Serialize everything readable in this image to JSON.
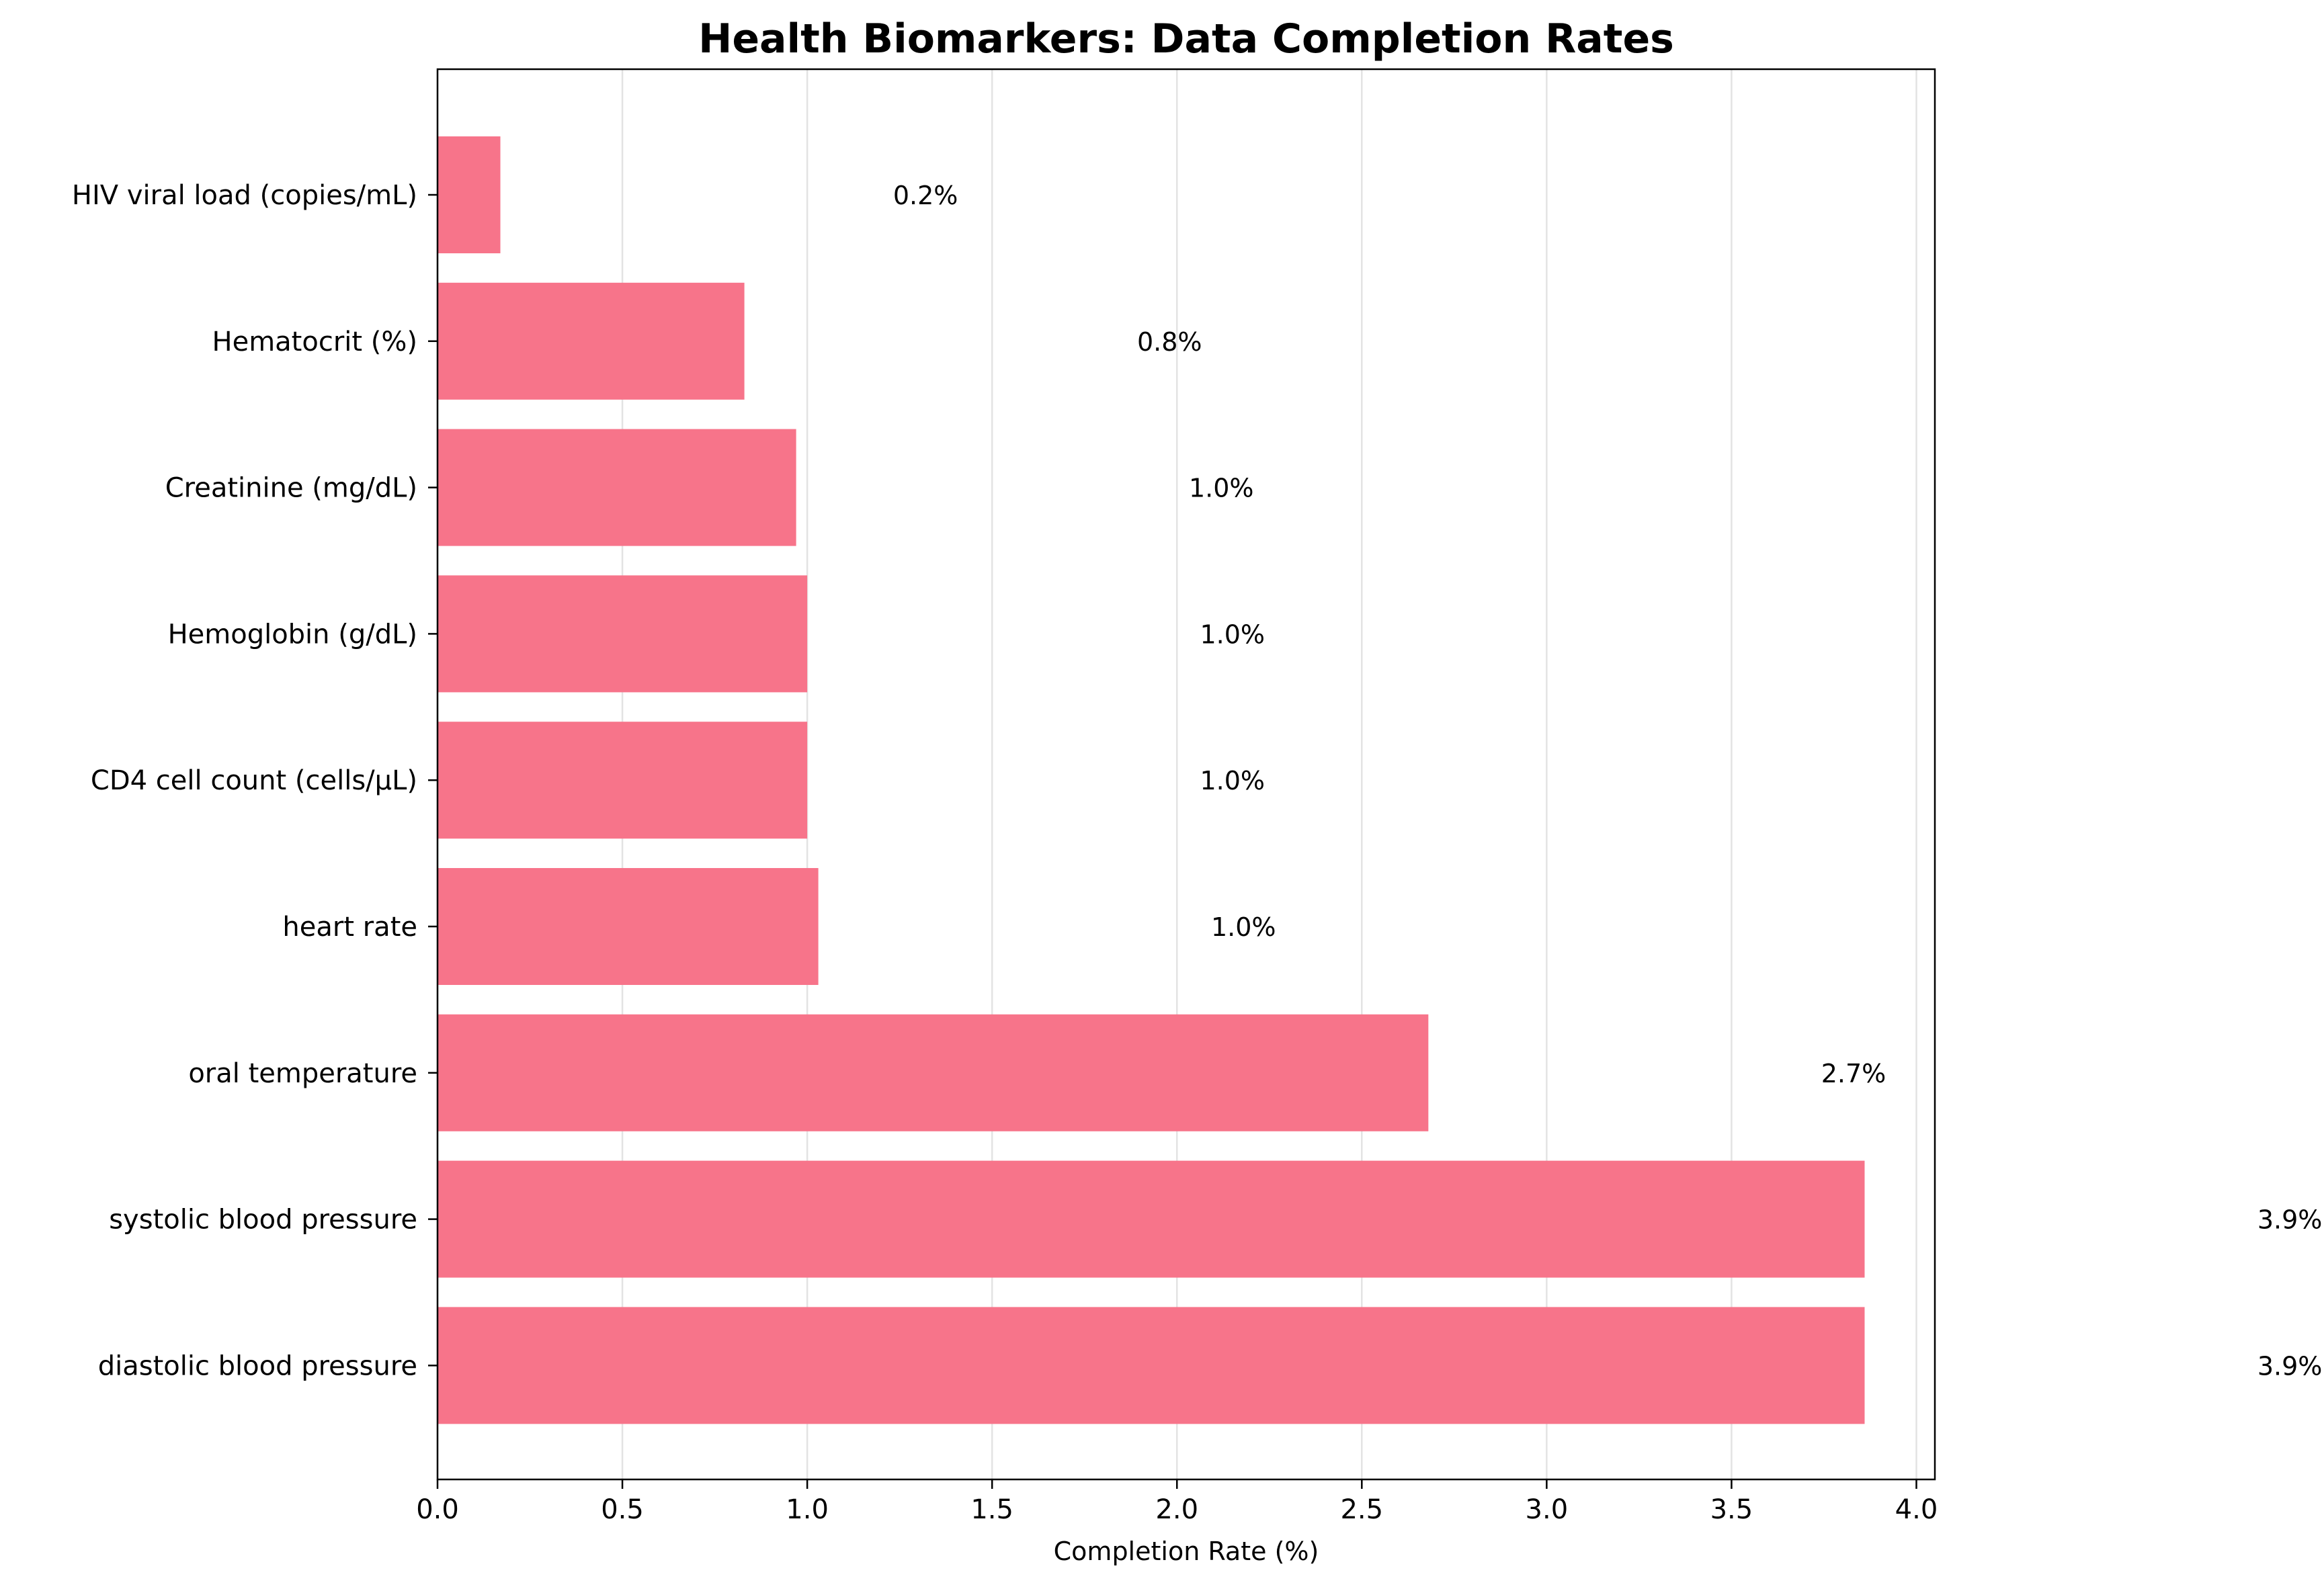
{
  "chart_data": {
    "type": "bar",
    "orientation": "horizontal",
    "title": "Health Biomarkers: Data Completion Rates",
    "xlabel": "Completion Rate (%)",
    "ylabel": "",
    "xlim": [
      0,
      4.05
    ],
    "x_ticks": [
      "0.0",
      "0.5",
      "1.0",
      "1.5",
      "2.0",
      "2.5",
      "3.0",
      "3.5",
      "4.0"
    ],
    "grid": "vertical",
    "bar_color": "#f7748a",
    "categories": [
      "HIV viral load (copies/mL)",
      "Hematocrit (%)",
      "Creatinine (mg/dL)",
      "Hemoglobin (g/dL)",
      "CD4 cell count (cells/µL)",
      "heart rate",
      "oral temperature",
      "systolic blood pressure",
      "diastolic blood pressure"
    ],
    "values": [
      0.17,
      0.83,
      0.97,
      1.0,
      1.0,
      1.03,
      2.68,
      3.86,
      3.86
    ],
    "value_labels": [
      "0.2%",
      "0.8%",
      "1.0%",
      "1.0%",
      "1.0%",
      "1.0%",
      "2.7%",
      "3.9%",
      "3.9%"
    ]
  }
}
